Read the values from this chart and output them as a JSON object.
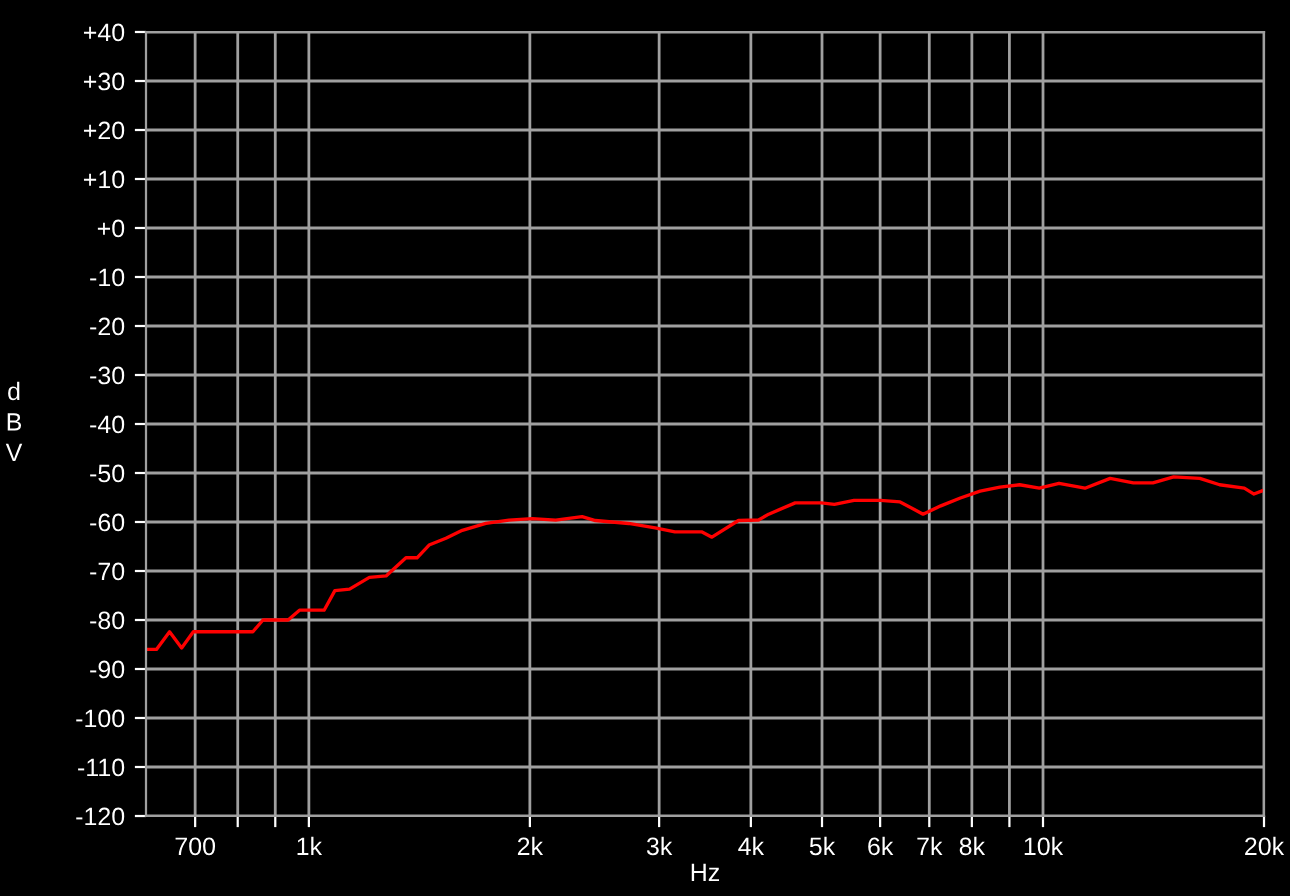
{
  "chart_data": {
    "type": "line",
    "xlabel": "Hz",
    "ylabel": "dBV",
    "log": "x",
    "grid": true,
    "marker": "none",
    "line_style": "solid",
    "xlim": [
      600,
      20000
    ],
    "xticks": [
      {
        "value": 700,
        "label": "700"
      },
      {
        "value": 800,
        "label": null
      },
      {
        "value": 900,
        "label": null
      },
      {
        "value": 1000,
        "label": "1k"
      },
      {
        "value": 2000,
        "label": "2k"
      },
      {
        "value": 3000,
        "label": "3k"
      },
      {
        "value": 4000,
        "label": "4k"
      },
      {
        "value": 5000,
        "label": "5k"
      },
      {
        "value": 6000,
        "label": "6k"
      },
      {
        "value": 7000,
        "label": "7k"
      },
      {
        "value": 8000,
        "label": "8k"
      },
      {
        "value": 9000,
        "label": null
      },
      {
        "value": 10000,
        "label": "10k"
      },
      {
        "value": 20000,
        "label": "20k"
      }
    ],
    "ylim": [
      -120,
      40
    ],
    "yticks": [
      {
        "value": 40,
        "label": "+40"
      },
      {
        "value": 30,
        "label": "+30"
      },
      {
        "value": 20,
        "label": "+20"
      },
      {
        "value": 10,
        "label": "+10"
      },
      {
        "value": 0,
        "label": "+0"
      },
      -10,
      -20,
      -30,
      -40,
      -50,
      -60,
      -70,
      -80,
      -90,
      -100,
      -110,
      -120
    ],
    "series": [
      {
        "color": "#ff0000",
        "x": [
          601,
          620,
          646,
          671,
          696,
          839,
          866,
          937,
          971,
          1049,
          1085,
          1136,
          1209,
          1274,
          1356,
          1404,
          1458,
          1537,
          1618,
          1742,
          1873,
          2015,
          2169,
          2356,
          2456,
          2727,
          2963,
          3152,
          3427,
          3540,
          3847,
          4098,
          4230,
          4597,
          4989,
          5198,
          5528,
          6004,
          6388,
          6865,
          7258,
          7717,
          8210,
          8735,
          9291,
          9885,
          10515,
          11407,
          12344,
          13275,
          14117,
          15065,
          16354,
          17400,
          18802,
          19380,
          20000
        ],
        "values": [
          -86,
          -86,
          -82.4,
          -85.7,
          -82.4,
          -82.4,
          -80,
          -80,
          -78,
          -78,
          -74,
          -73.7,
          -71.3,
          -71,
          -67.3,
          -67.3,
          -64.7,
          -63.3,
          -61.7,
          -60.3,
          -59.6,
          -59.3,
          -59.6,
          -58.9,
          -59.7,
          -60.3,
          -61.2,
          -62,
          -62,
          -63.1,
          -59.7,
          -59.6,
          -58.4,
          -56.1,
          -56.1,
          -56.4,
          -55.6,
          -55.6,
          -55.9,
          -58.4,
          -56.7,
          -55.1,
          -53.7,
          -52.9,
          -52.4,
          -53.1,
          -52.1,
          -53.1,
          -51.1,
          -52,
          -52,
          -50.8,
          -51.1,
          -52.4,
          -53.1,
          -54.3,
          -53.5
        ]
      }
    ]
  }
}
